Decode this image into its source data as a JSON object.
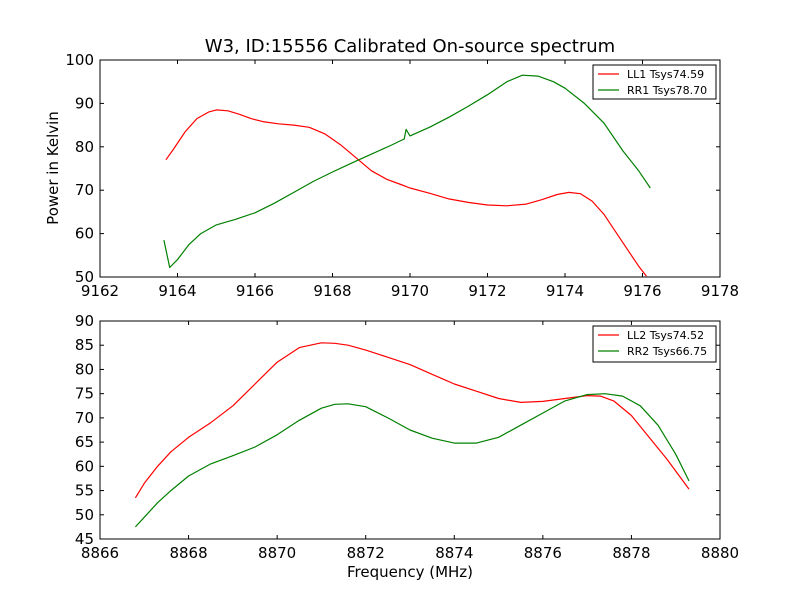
{
  "figure": {
    "title": "W3, ID:15556 Calibrated On-source spectrum",
    "ylabel": "Power in Kelvin",
    "xlabel": "Frequency (MHz)"
  },
  "chart_data": [
    {
      "type": "line",
      "title": "W3, ID:15556 Calibrated On-source spectrum",
      "xlabel": "",
      "ylabel": "Power in Kelvin",
      "xlim": [
        9162,
        9178
      ],
      "ylim": [
        50,
        100
      ],
      "xticks": [
        "9162",
        "9164",
        "9166",
        "9168",
        "9170",
        "9172",
        "9174",
        "9176",
        "9178"
      ],
      "yticks": [
        "50",
        "60",
        "70",
        "80",
        "90",
        "100"
      ],
      "grid": false,
      "legend_position": "top-right",
      "series": [
        {
          "name": "LL1 Tsys74.59",
          "color": "#ff0000",
          "x": [
            9163.7,
            9163.9,
            9164.2,
            9164.5,
            9164.8,
            9165.0,
            9165.3,
            9165.6,
            9165.9,
            9166.2,
            9166.6,
            9167.0,
            9167.4,
            9167.8,
            9168.2,
            9168.6,
            9169.0,
            9169.4,
            9169.8,
            9170.0,
            9170.5,
            9171.0,
            9171.5,
            9172.0,
            9172.5,
            9173.0,
            9173.4,
            9173.8,
            9174.1,
            9174.4,
            9174.7,
            9175.0,
            9175.3,
            9175.6,
            9175.9,
            9176.1
          ],
          "y": [
            77.0,
            79.5,
            83.5,
            86.5,
            88.0,
            88.5,
            88.3,
            87.5,
            86.5,
            85.8,
            85.3,
            85.0,
            84.5,
            83.0,
            80.5,
            77.5,
            74.5,
            72.5,
            71.2,
            70.5,
            69.3,
            68.0,
            67.2,
            66.6,
            66.4,
            66.8,
            67.8,
            69.0,
            69.5,
            69.2,
            67.5,
            64.5,
            60.5,
            56.5,
            52.5,
            50.2
          ]
        },
        {
          "name": "RR1 Tsys78.70",
          "color": "#008000",
          "x": [
            9163.65,
            9163.8,
            9164.0,
            9164.3,
            9164.6,
            9165.0,
            9165.5,
            9166.0,
            9166.5,
            9167.0,
            9167.5,
            9168.0,
            9168.5,
            9169.0,
            9169.5,
            9169.85,
            9169.9,
            9170.0,
            9170.5,
            9171.0,
            9171.5,
            9172.0,
            9172.5,
            9172.9,
            9173.3,
            9173.7,
            9174.0,
            9174.5,
            9175.0,
            9175.5,
            9175.9,
            9176.2
          ],
          "y": [
            58.5,
            52.2,
            54.0,
            57.5,
            60.0,
            62.0,
            63.3,
            64.8,
            67.0,
            69.5,
            72.0,
            74.2,
            76.3,
            78.3,
            80.3,
            81.8,
            84.0,
            82.5,
            84.5,
            86.8,
            89.3,
            92.0,
            95.0,
            96.5,
            96.3,
            95.0,
            93.5,
            90.0,
            85.5,
            79.0,
            74.5,
            70.5
          ]
        }
      ]
    },
    {
      "type": "line",
      "title": "",
      "xlabel": "Frequency (MHz)",
      "ylabel": "",
      "xlim": [
        8866,
        8880
      ],
      "ylim": [
        45,
        90
      ],
      "xticks": [
        "8866",
        "8868",
        "8870",
        "8872",
        "8874",
        "8876",
        "8878",
        "8880"
      ],
      "yticks": [
        "45",
        "50",
        "55",
        "60",
        "65",
        "70",
        "75",
        "80",
        "85",
        "90"
      ],
      "grid": false,
      "legend_position": "top-right",
      "series": [
        {
          "name": "LL2 Tsys74.52",
          "color": "#ff0000",
          "x": [
            8866.8,
            8867.0,
            8867.3,
            8867.6,
            8868.0,
            8868.5,
            8869.0,
            8869.5,
            8870.0,
            8870.5,
            8871.0,
            8871.3,
            8871.6,
            8872.0,
            8872.5,
            8873.0,
            8873.5,
            8874.0,
            8874.5,
            8875.0,
            8875.5,
            8876.0,
            8876.5,
            8877.0,
            8877.3,
            8877.6,
            8878.0,
            8878.4,
            8878.8,
            8879.3
          ],
          "y": [
            53.5,
            56.5,
            60.0,
            63.0,
            66.0,
            69.0,
            72.5,
            77.0,
            81.5,
            84.5,
            85.5,
            85.4,
            85.0,
            84.0,
            82.5,
            81.0,
            79.0,
            77.0,
            75.5,
            74.0,
            73.2,
            73.4,
            74.0,
            74.6,
            74.5,
            73.5,
            70.5,
            66.0,
            61.5,
            55.3
          ]
        },
        {
          "name": "RR2 Tsys66.75",
          "color": "#008000",
          "x": [
            8866.8,
            8867.0,
            8867.3,
            8867.6,
            8868.0,
            8868.5,
            8869.0,
            8869.5,
            8870.0,
            8870.5,
            8871.0,
            8871.3,
            8871.6,
            8872.0,
            8872.5,
            8873.0,
            8873.5,
            8874.0,
            8874.5,
            8875.0,
            8875.5,
            8876.0,
            8876.5,
            8877.0,
            8877.4,
            8877.8,
            8878.2,
            8878.6,
            8879.0,
            8879.3
          ],
          "y": [
            47.5,
            49.5,
            52.5,
            55.0,
            58.0,
            60.5,
            62.2,
            64.0,
            66.5,
            69.5,
            72.0,
            72.8,
            72.9,
            72.3,
            70.0,
            67.5,
            65.8,
            64.8,
            64.8,
            66.0,
            68.5,
            71.0,
            73.5,
            74.8,
            75.0,
            74.5,
            72.5,
            68.5,
            62.5,
            57.0
          ]
        }
      ]
    }
  ]
}
